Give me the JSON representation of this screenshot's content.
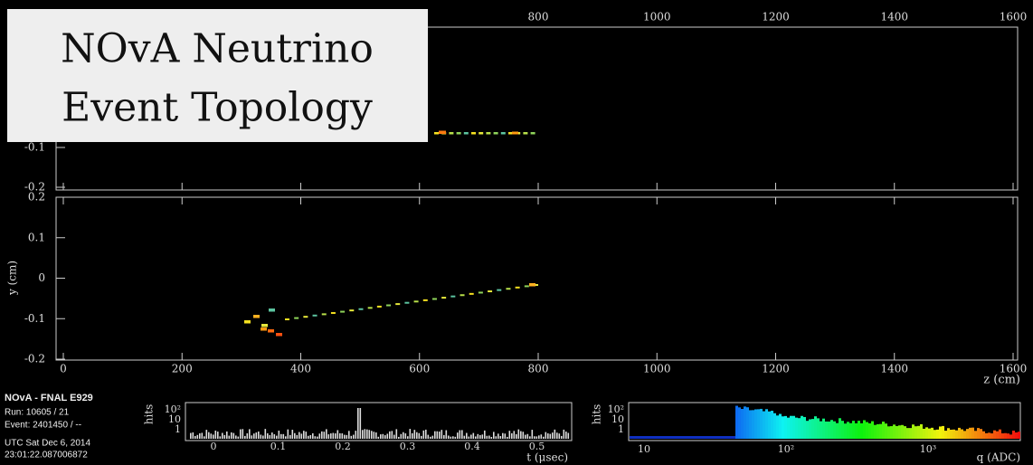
{
  "title": [
    "NOvA Neutrino",
    "Event Topology"
  ],
  "top_view": {
    "x_ticks": [
      "800",
      "1000",
      "1200",
      "1400",
      "1600"
    ],
    "y_ticks": [
      "-0.1",
      "-0.2"
    ]
  },
  "side_view": {
    "y_label": "y (cm)",
    "y_ticks": [
      "0.2",
      "0.1",
      "0",
      "-0.1",
      "-0.2"
    ],
    "x_ticks": [
      "0",
      "200",
      "400",
      "600",
      "800",
      "1000",
      "1200",
      "1400",
      "1600"
    ],
    "x_label": "z (cm)"
  },
  "info": {
    "experiment": "NOvA - FNAL E929",
    "run": "Run:  10605 / 21",
    "event": "Event: 2401450 / --",
    "utc_date": "UTC Sat Dec 6, 2014",
    "utc_time": "23:01:22.087006872"
  },
  "time_hist": {
    "y_label": "hits",
    "y_ticks": [
      "10²",
      "10",
      "1"
    ],
    "x_ticks": [
      "0",
      "0.1",
      "0.2",
      "0.3",
      "0.4",
      "0.5"
    ],
    "x_label": "t (μsec)"
  },
  "charge_hist": {
    "y_label": "hits",
    "y_ticks": [
      "10²",
      "10",
      "1"
    ],
    "x_ticks": [
      "10",
      "10²",
      "10³"
    ],
    "x_label": "q (ADC)"
  }
}
